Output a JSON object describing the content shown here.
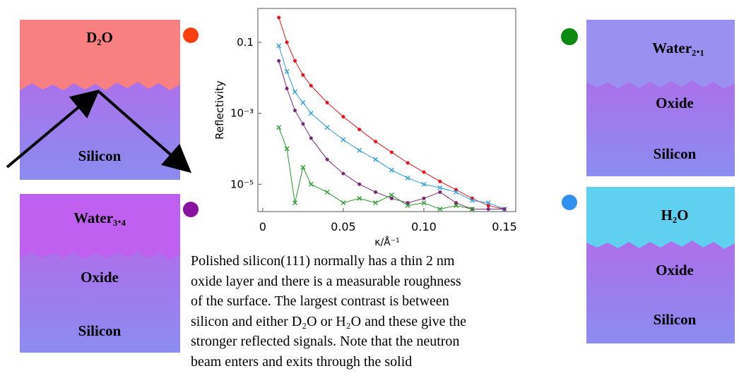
{
  "panels": [
    {
      "layers": [
        "D₂O",
        "Silicon"
      ]
    },
    {
      "layers": [
        "Water₃.₄",
        "Oxide",
        "Silicon"
      ]
    },
    {
      "layers": [
        "Water₂.₁",
        "Oxide",
        "Silicon"
      ]
    },
    {
      "layers": [
        "H₂O",
        "Oxide",
        "Silicon"
      ]
    }
  ],
  "caption": [
    "Polished silicon(111) normally has a thin 2 nm",
    "oxide layer and there is a measurable roughness",
    "of the surface. The largest contrast is between",
    "silicon and either D₂O or H₂O and these give the",
    "stronger reflected signals. Note that the neutron",
    "beam enters and exits through the solid"
  ],
  "chart_data": {
    "type": "line",
    "y_label": "Reflectivity",
    "x_label": "κ/Å⁻¹",
    "log_y": true,
    "xlim": [
      -0.003,
      0.157
    ],
    "xticks": [
      0,
      0.05,
      {
        "value": 0.1,
        "label": "0.10"
      },
      0.15
    ],
    "ylim": [
      1.7e-06,
      0.9
    ],
    "yticks": [
      0.1,
      {
        "value": 0.001,
        "label": "10⁻³"
      },
      {
        "value": 1e-05,
        "label": "10⁻⁵"
      }
    ],
    "x": [
      0.01,
      0.015,
      0.02,
      0.025,
      0.03,
      0.04,
      0.05,
      0.06,
      0.07,
      0.08,
      0.09,
      0.1,
      0.11,
      0.12,
      0.13,
      0.14,
      0.15
    ],
    "series": [
      {
        "color": "#e8141c",
        "marker": "circle",
        "values": [
          0.5,
          0.1,
          0.03,
          0.012,
          0.006,
          0.002,
          0.0008,
          0.00035,
          0.00016,
          8e-05,
          4e-05,
          2.2e-05,
          1.2e-05,
          7e-06,
          4e-06,
          2.5e-06,
          2e-06
        ]
      },
      {
        "color": "#2a9de0",
        "marker": "cross",
        "values": [
          0.08,
          0.015,
          0.004,
          0.002,
          0.001,
          0.0004,
          0.00018,
          9e-05,
          5e-05,
          2.5e-05,
          1.5e-05,
          1e-05,
          8e-06,
          6e-06,
          3.5e-06,
          3e-06,
          2e-06
        ]
      },
      {
        "color": "#7a2a7a",
        "marker": "circle",
        "values": [
          0.03,
          0.005,
          0.0012,
          0.0005,
          0.0002,
          5e-05,
          2e-05,
          1e-05,
          6e-06,
          4e-06,
          3e-06,
          4e-06,
          6e-06,
          3e-06,
          2e-06,
          2e-06,
          2e-06
        ]
      },
      {
        "color": "#2a9a2a",
        "marker": "cross",
        "values": [
          0.0004,
          0.0001,
          3e-06,
          3e-05,
          1e-05,
          6e-06,
          3e-06,
          4e-06,
          3e-06,
          5e-06,
          2.5e-06,
          3e-06,
          2e-06,
          2.5e-06,
          2e-06,
          null,
          null
        ]
      }
    ]
  }
}
